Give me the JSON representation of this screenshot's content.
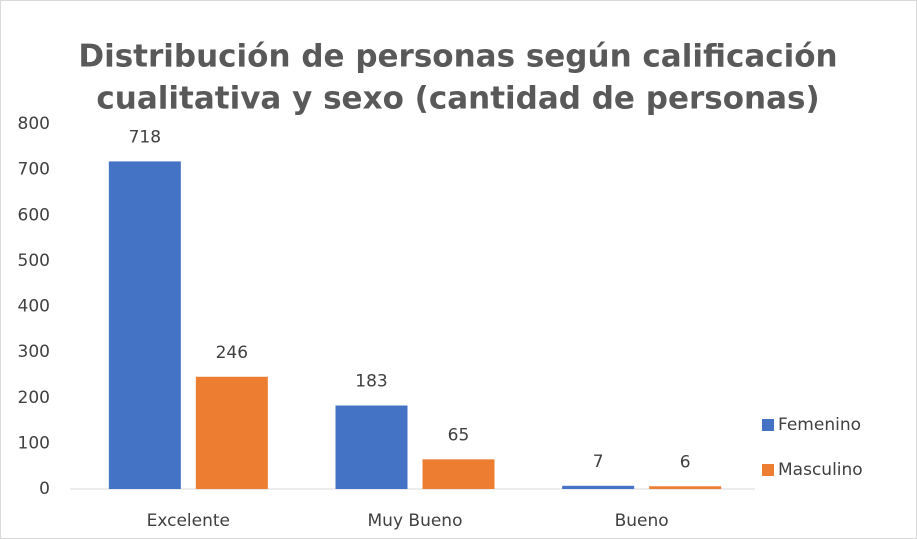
{
  "chart_data": {
    "type": "bar",
    "title": [
      "Distribución de personas según calificación",
      "cualitativa y sexo (cantidad de personas)"
    ],
    "categories": [
      "Excelente",
      "Muy Bueno",
      "Bueno"
    ],
    "series": [
      {
        "name": "Femenino",
        "color": "#4472c4",
        "values": [
          718,
          183,
          7
        ]
      },
      {
        "name": "Masculino",
        "color": "#ed7d31",
        "values": [
          246,
          65,
          6
        ]
      }
    ],
    "ylim": [
      0,
      800
    ],
    "yticks": [
      0,
      100,
      200,
      300,
      400,
      500,
      600,
      700,
      800
    ],
    "grid": false,
    "legend": "right"
  }
}
